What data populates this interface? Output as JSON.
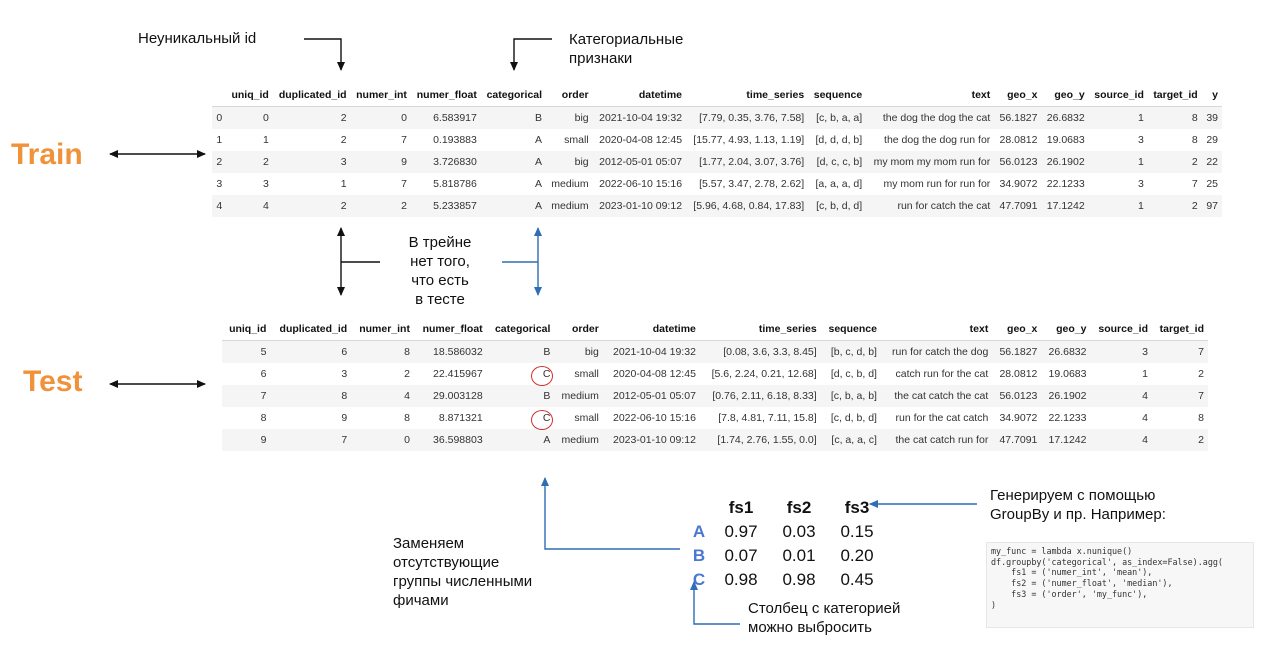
{
  "annotations": {
    "nonunique_id": "Неуникальный id",
    "categorical_features": [
      "Категориальные",
      "признаки"
    ],
    "train_label": "Train",
    "test_label": "Test",
    "train_missing": [
      "В трейне",
      "нет того,",
      "что есть",
      "в тесте"
    ],
    "replace_groups": [
      "Заменяем",
      "отсутствующие",
      "группы численными",
      "фичами"
    ],
    "generate_groupby": [
      "Генерируем  с помощью",
      "GroupBy и пр. Например:"
    ],
    "drop_column": [
      "Столбец с категорией",
      "можно выбросить"
    ]
  },
  "train": {
    "columns": [
      "",
      "uniq_id",
      "duplicated_id",
      "numer_int",
      "numer_float",
      "categorical",
      "order",
      "datetime",
      "time_series",
      "sequence",
      "text",
      "geo_x",
      "geo_y",
      "source_id",
      "target_id",
      "y"
    ],
    "rows": [
      [
        "0",
        "0",
        "2",
        "0",
        "6.583917",
        "B",
        "big",
        "2021-10-04 19:32",
        "[7.79, 0.35, 3.76, 7.58]",
        "[c, b, a, a]",
        "the dog the dog the cat",
        "56.1827",
        "26.6832",
        "1",
        "8",
        "39"
      ],
      [
        "1",
        "1",
        "2",
        "7",
        "0.193883",
        "A",
        "small",
        "2020-04-08 12:45",
        "[15.77, 4.93, 1.13, 1.19]",
        "[d, d, d, b]",
        "the dog the dog run for",
        "28.0812",
        "19.0683",
        "3",
        "8",
        "29"
      ],
      [
        "2",
        "2",
        "3",
        "9",
        "3.726830",
        "A",
        "big",
        "2012-05-01 05:07",
        "[1.77, 2.04, 3.07, 3.76]",
        "[d, c, c, b]",
        "my mom my mom run for",
        "56.0123",
        "26.1902",
        "1",
        "2",
        "22"
      ],
      [
        "3",
        "3",
        "1",
        "7",
        "5.818786",
        "A",
        "medium",
        "2022-06-10 15:16",
        "[5.57, 3.47, 2.78, 2.62]",
        "[a, a, a, d]",
        "my mom run for run for",
        "34.9072",
        "22.1233",
        "3",
        "7",
        "25"
      ],
      [
        "4",
        "4",
        "2",
        "2",
        "5.233857",
        "A",
        "medium",
        "2023-01-10 09:12",
        "[5.96, 4.68, 0.84, 17.83]",
        "[c, b, d, d]",
        "run for catch the cat",
        "47.7091",
        "17.1242",
        "1",
        "2",
        "97"
      ]
    ]
  },
  "test": {
    "columns": [
      "uniq_id",
      "duplicated_id",
      "numer_int",
      "numer_float",
      "categorical",
      "order",
      "datetime",
      "time_series",
      "sequence",
      "text",
      "geo_x",
      "geo_y",
      "source_id",
      "target_id"
    ],
    "rows": [
      [
        "5",
        "6",
        "8",
        "18.586032",
        "B",
        "big",
        "2021-10-04 19:32",
        "[0.08, 3.6, 3.3, 8.45]",
        "[b, c, d, b]",
        "run for catch the dog",
        "56.1827",
        "26.6832",
        "3",
        "7"
      ],
      [
        "6",
        "3",
        "2",
        "22.415967",
        "C",
        "small",
        "2020-04-08 12:45",
        "[5.6, 2.24, 0.21, 12.68]",
        "[d, c, b, d]",
        "catch run for the cat",
        "28.0812",
        "19.0683",
        "1",
        "2"
      ],
      [
        "7",
        "8",
        "4",
        "29.003128",
        "B",
        "medium",
        "2012-05-01 05:07",
        "[0.76, 2.11, 6.18, 8.33]",
        "[c, b, a, b]",
        "the cat catch the cat",
        "56.0123",
        "26.1902",
        "4",
        "7"
      ],
      [
        "8",
        "9",
        "8",
        "8.871321",
        "C",
        "small",
        "2022-06-10 15:16",
        "[7.8, 4.81, 7.11, 15.8]",
        "[c, d, b, d]",
        "run for the cat catch",
        "34.9072",
        "22.1233",
        "4",
        "8"
      ],
      [
        "9",
        "7",
        "0",
        "36.598803",
        "A",
        "medium",
        "2023-01-10 09:12",
        "[1.74, 2.76, 1.55, 0.0]",
        "[c, a, a, c]",
        "the cat catch run for",
        "47.7091",
        "17.1242",
        "4",
        "2"
      ]
    ]
  },
  "fs_table": {
    "columns": [
      "",
      "fs1",
      "fs2",
      "fs3"
    ],
    "rows": [
      [
        "A",
        "0.97",
        "0.03",
        "0.15"
      ],
      [
        "B",
        "0.07",
        "0.01",
        "0.20"
      ],
      [
        "C",
        "0.98",
        "0.98",
        "0.45"
      ]
    ]
  },
  "code": {
    "lines": [
      "my_func = lambda x.nunique()",
      "df.groupby('categorical', as_index=False).agg(",
      "    fs1 = ('numer_int', 'mean'),",
      "    fs2 = ('numer_float', 'median'),",
      "    fs3 = ('order', 'my_func'),",
      ")"
    ]
  },
  "colors": {
    "label_orange": "#f0923a",
    "arrow_blue": "#2f6db5",
    "circle_red": "#d12f2f",
    "category_blue": "#4a78d0"
  }
}
